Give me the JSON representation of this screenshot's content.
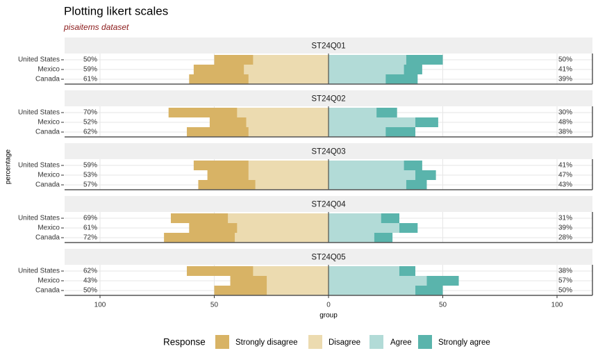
{
  "chart_data": {
    "type": "bar",
    "title": "Plotting likert scales",
    "subtitle": "pisaitems dataset",
    "xlabel": "group",
    "ylabel": "percentage",
    "legend_title": "Response",
    "xlim": [
      -115.5,
      115.5
    ],
    "xticks": [
      {
        "value": -100,
        "label": "100"
      },
      {
        "value": -50,
        "label": "50"
      },
      0,
      50,
      100
    ],
    "grid": true,
    "categories": [
      "United States",
      "Mexico",
      "Canada"
    ],
    "series": [
      {
        "name": "Strongly disagree",
        "color": "#d8b365"
      },
      {
        "name": "Disagree",
        "color": "#ecdbb0"
      },
      {
        "name": "Agree",
        "color": "#b2dbd7"
      },
      {
        "name": "Strongly agree",
        "color": "#5ab4ac"
      }
    ],
    "facets": [
      {
        "title": "ST24Q01",
        "values": [
          [
            17,
            22,
            26
          ],
          [
            33,
            37,
            35
          ],
          [
            34,
            33,
            25
          ],
          [
            16,
            8,
            14
          ]
        ],
        "left_labels": [
          "50%",
          "59%",
          "61%"
        ],
        "right_labels": [
          "50%",
          "41%",
          "39%"
        ]
      },
      {
        "title": "ST24Q02",
        "values": [
          [
            30,
            16,
            27
          ],
          [
            40,
            36,
            35
          ],
          [
            21,
            38,
            25
          ],
          [
            9,
            10,
            13
          ]
        ],
        "left_labels": [
          "70%",
          "52%",
          "62%"
        ],
        "right_labels": [
          "30%",
          "48%",
          "38%"
        ]
      },
      {
        "title": "ST24Q03",
        "values": [
          [
            24,
            18,
            25
          ],
          [
            35,
            35,
            32
          ],
          [
            33,
            38,
            34
          ],
          [
            8,
            9,
            9
          ]
        ],
        "left_labels": [
          "59%",
          "53%",
          "57%"
        ],
        "right_labels": [
          "41%",
          "47%",
          "43%"
        ]
      },
      {
        "title": "ST24Q04",
        "values": [
          [
            25,
            21,
            31
          ],
          [
            44,
            40,
            41
          ],
          [
            23,
            31,
            20
          ],
          [
            8,
            8,
            8
          ]
        ],
        "left_labels": [
          "69%",
          "61%",
          "72%"
        ],
        "right_labels": [
          "31%",
          "39%",
          "28%"
        ]
      },
      {
        "title": "ST24Q05",
        "values": [
          [
            29,
            16,
            23
          ],
          [
            33,
            27,
            27
          ],
          [
            31,
            43,
            38
          ],
          [
            7,
            14,
            12
          ]
        ],
        "left_labels": [
          "62%",
          "43%",
          "50%"
        ],
        "right_labels": [
          "38%",
          "57%",
          "50%"
        ]
      }
    ]
  }
}
